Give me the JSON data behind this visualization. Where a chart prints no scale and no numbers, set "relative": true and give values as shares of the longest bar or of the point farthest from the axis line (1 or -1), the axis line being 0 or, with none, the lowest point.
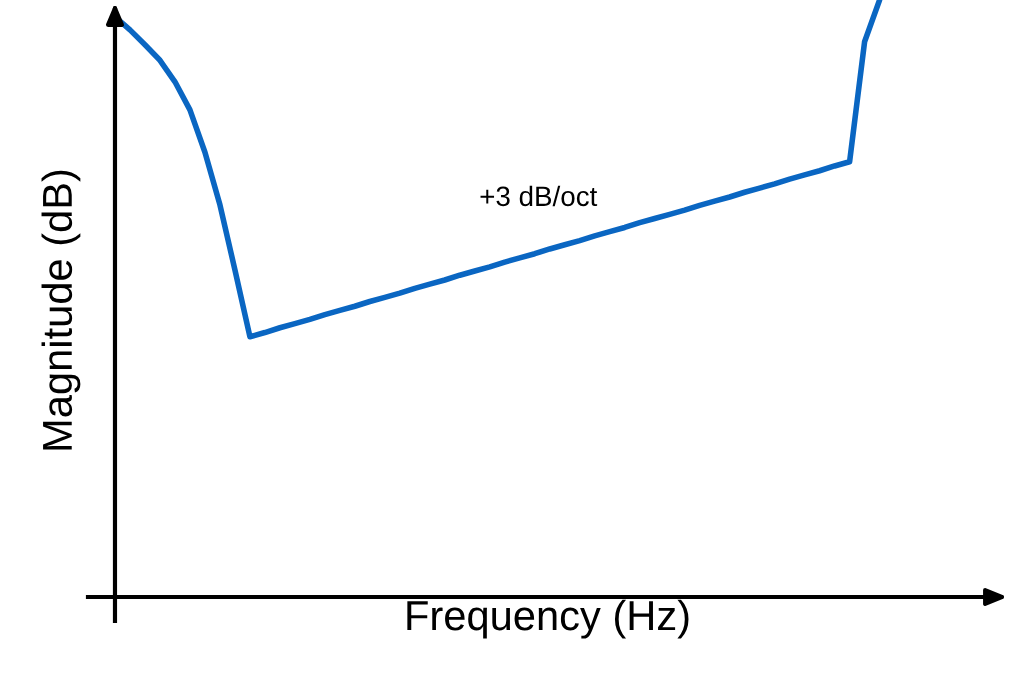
{
  "chart_data": {
    "type": "line",
    "relative": true,
    "xlabel": "Frequency (Hz)",
    "ylabel": "Magnitude (dB)",
    "annotations": [
      "+3 dB/oct"
    ],
    "categories": [
      null,
      null,
      null,
      null,
      null,
      null,
      null,
      null,
      null,
      null,
      null,
      null,
      null,
      null,
      null,
      null,
      null,
      null,
      null,
      null,
      null,
      null,
      null,
      null,
      null,
      null,
      null,
      null,
      null,
      null,
      null,
      null,
      null,
      null,
      null,
      null,
      null,
      null,
      null,
      null,
      null,
      null,
      null,
      null,
      null,
      null,
      null,
      null,
      null,
      null,
      null,
      null,
      null,
      null,
      null,
      null,
      null,
      null,
      null,
      null
    ],
    "series": [
      {
        "color": "#0a66c2",
        "values": [
          0.972,
          0.95,
          0.925,
          0.899,
          0.863,
          0.816,
          0.745,
          0.657,
          0.548,
          0.436,
          0.443,
          0.451,
          0.458,
          0.465,
          0.473,
          0.48,
          0.487,
          0.495,
          0.502,
          0.509,
          0.517,
          0.524,
          0.531,
          0.539,
          0.546,
          0.553,
          0.561,
          0.568,
          0.575,
          0.583,
          0.59,
          0.597,
          0.605,
          0.612,
          0.619,
          0.627,
          0.634,
          0.641,
          0.648,
          0.656,
          0.663,
          0.67,
          0.678,
          0.685,
          0.692,
          0.7,
          0.707,
          0.714,
          0.722,
          0.729,
          0.93,
          1.0,
          null,
          null,
          null,
          null,
          null,
          null,
          null,
          null
        ]
      }
    ],
    "tick_labels": false,
    "grid": false
  }
}
